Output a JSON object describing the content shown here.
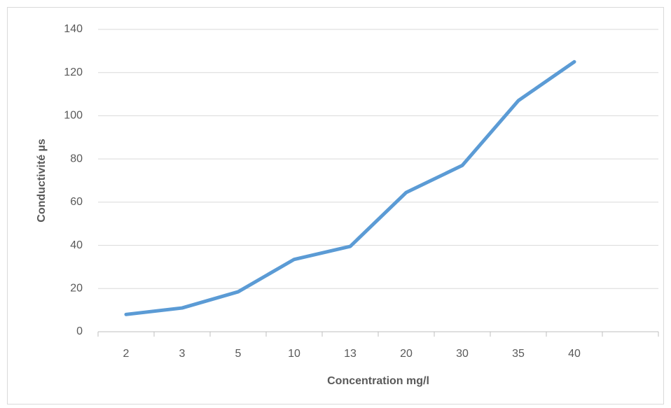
{
  "chart_data": {
    "type": "line",
    "x_label": "Concentration mg/l",
    "y_label": "Conductivité  µs",
    "categories": [
      "2",
      "3",
      "5",
      "10",
      "13",
      "20",
      "30",
      "35",
      "40",
      null
    ],
    "values": [
      8,
      11,
      18.5,
      33.5,
      39.5,
      64.5,
      77,
      107,
      125,
      null
    ],
    "color": "#5b9bd5",
    "ylim": [
      0,
      140
    ],
    "yticks": [
      0,
      20,
      40,
      60,
      80,
      100,
      120,
      140
    ],
    "grid": true
  }
}
